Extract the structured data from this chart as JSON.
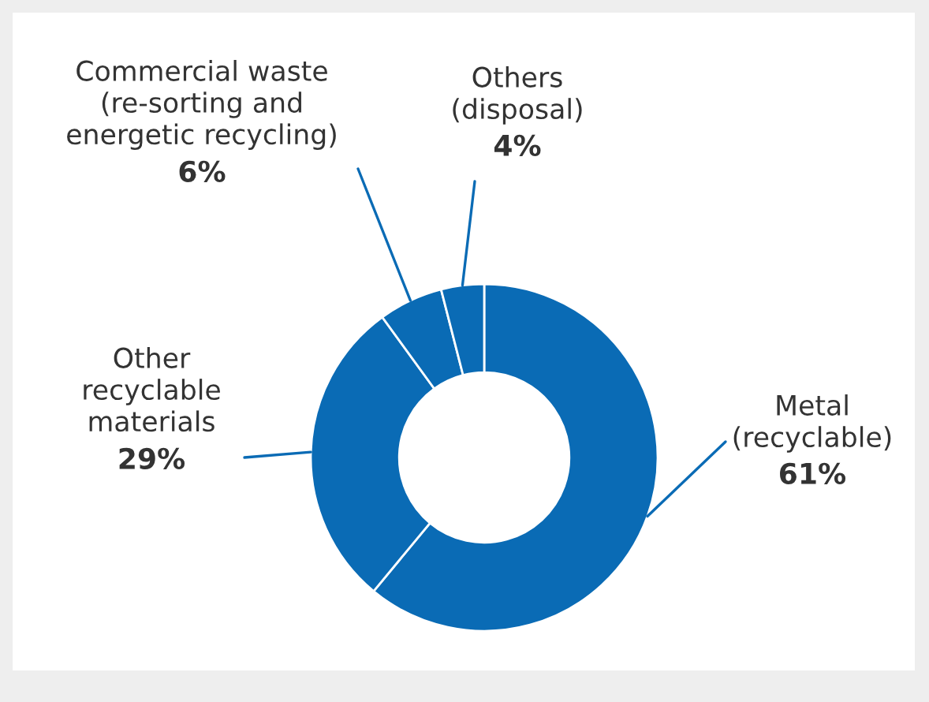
{
  "chart_data": {
    "type": "donut",
    "categories": [
      "Metal\n(recyclable)",
      "Other\nrecyclable\nmaterials",
      "Commercial waste\n(re-sorting and\nenergetic recycling)",
      "Others\n(disposal)"
    ],
    "values": [
      61,
      29,
      6,
      4
    ],
    "value_labels": [
      "61%",
      "29%",
      "6%",
      "4%"
    ],
    "colors": [
      "#0a6bb5",
      "#0a6bb5",
      "#0a6bb5",
      "#0a6bb5"
    ],
    "legend": false
  }
}
